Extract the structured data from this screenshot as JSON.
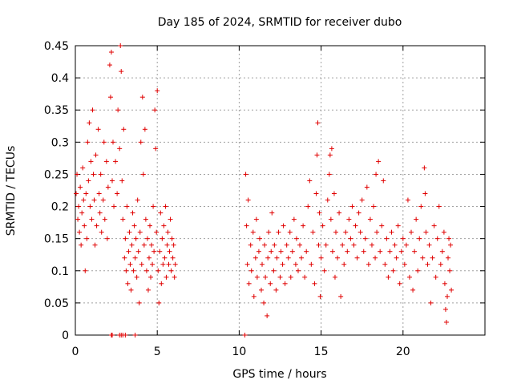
{
  "chart_data": {
    "type": "scatter",
    "title": "Day 185 of 2024, SRMTID for receiver dubo",
    "xlabel": "GPS time / hours",
    "ylabel": "SRMTID / TECUs",
    "xlim": [
      0,
      25
    ],
    "ylim": [
      0,
      0.45
    ],
    "grid": true,
    "marker": "+",
    "color": "#e00000",
    "xticks": [
      {
        "value": 0,
        "label": "0"
      },
      {
        "value": 5,
        "label": "5"
      },
      {
        "value": 10,
        "label": "10"
      },
      {
        "value": 15,
        "label": "15"
      },
      {
        "value": 20,
        "label": "20"
      }
    ],
    "yticks": [
      {
        "value": 0,
        "label": "0"
      },
      {
        "value": 0.05,
        "label": "0.05"
      },
      {
        "value": 0.1,
        "label": "0.1"
      },
      {
        "value": 0.15,
        "label": "0.15"
      },
      {
        "value": 0.2,
        "label": "0.2"
      },
      {
        "value": 0.25,
        "label": "0.25"
      },
      {
        "value": 0.3,
        "label": "0.3"
      },
      {
        "value": 0.35,
        "label": "0.35"
      },
      {
        "value": 0.4,
        "label": "0.4"
      },
      {
        "value": 0.45,
        "label": "0.45"
      }
    ],
    "series": [
      {
        "name": "SRMTID",
        "points": [
          [
            0.05,
            0.22
          ],
          [
            0.1,
            0.25
          ],
          [
            0.15,
            0.18
          ],
          [
            0.2,
            0.2
          ],
          [
            0.25,
            0.16
          ],
          [
            0.3,
            0.23
          ],
          [
            0.35,
            0.14
          ],
          [
            0.4,
            0.19
          ],
          [
            0.45,
            0.26
          ],
          [
            0.5,
            0.21
          ],
          [
            0.55,
            0.17
          ],
          [
            0.6,
            0.1
          ],
          [
            0.65,
            0.22
          ],
          [
            0.7,
            0.15
          ],
          [
            0.75,
            0.3
          ],
          [
            0.8,
            0.24
          ],
          [
            0.85,
            0.33
          ],
          [
            0.9,
            0.2
          ],
          [
            0.95,
            0.27
          ],
          [
            1.0,
            0.18
          ],
          [
            1.05,
            0.35
          ],
          [
            1.1,
            0.25
          ],
          [
            1.15,
            0.21
          ],
          [
            1.2,
            0.14
          ],
          [
            1.25,
            0.28
          ],
          [
            1.3,
            0.17
          ],
          [
            1.4,
            0.32
          ],
          [
            1.45,
            0.22
          ],
          [
            1.5,
            0.19
          ],
          [
            1.55,
            0.25
          ],
          [
            1.6,
            0.16
          ],
          [
            1.7,
            0.21
          ],
          [
            1.75,
            0.3
          ],
          [
            1.8,
            0.18
          ],
          [
            1.9,
            0.27
          ],
          [
            1.95,
            0.15
          ],
          [
            2.0,
            0.23
          ],
          [
            2.1,
            0.42
          ],
          [
            2.15,
            0.37
          ],
          [
            2.2,
            0.44
          ],
          [
            2.25,
            0.24
          ],
          [
            2.3,
            0.3
          ],
          [
            2.35,
            0.2
          ],
          [
            2.45,
            0.27
          ],
          [
            2.55,
            0.22
          ],
          [
            2.6,
            0.35
          ],
          [
            2.7,
            0.29
          ],
          [
            2.75,
            0.45
          ],
          [
            2.8,
            0.41
          ],
          [
            2.85,
            0.24
          ],
          [
            2.9,
            0.18
          ],
          [
            2.95,
            0.32
          ],
          [
            3.0,
            0.12
          ],
          [
            3.05,
            0.15
          ],
          [
            3.1,
            0.1
          ],
          [
            3.15,
            0.2
          ],
          [
            3.2,
            0.08
          ],
          [
            3.25,
            0.13
          ],
          [
            3.3,
            0.16
          ],
          [
            3.35,
            0.11
          ],
          [
            3.4,
            0.07
          ],
          [
            3.45,
            0.14
          ],
          [
            3.5,
            0.19
          ],
          [
            3.55,
            0.1
          ],
          [
            3.6,
            0.17
          ],
          [
            3.65,
            0.12
          ],
          [
            3.7,
            0.15
          ],
          [
            3.75,
            0.09
          ],
          [
            3.8,
            0.21
          ],
          [
            3.85,
            0.13
          ],
          [
            3.9,
            0.05
          ],
          [
            3.95,
            0.16
          ],
          [
            4.0,
            0.3
          ],
          [
            4.05,
            0.11
          ],
          [
            4.1,
            0.37
          ],
          [
            4.15,
            0.25
          ],
          [
            4.2,
            0.14
          ],
          [
            4.25,
            0.32
          ],
          [
            4.3,
            0.18
          ],
          [
            4.35,
            0.1
          ],
          [
            4.4,
            0.15
          ],
          [
            4.45,
            0.07
          ],
          [
            4.5,
            0.12
          ],
          [
            4.55,
            0.17
          ],
          [
            4.6,
            0.09
          ],
          [
            4.65,
            0.14
          ],
          [
            4.7,
            0.11
          ],
          [
            4.75,
            0.2
          ],
          [
            4.8,
            0.13
          ],
          [
            4.85,
            0.35
          ],
          [
            4.9,
            0.29
          ],
          [
            4.95,
            0.16
          ],
          [
            5.0,
            0.38
          ],
          [
            5.05,
            0.1
          ],
          [
            5.1,
            0.05
          ],
          [
            5.15,
            0.13
          ],
          [
            5.2,
            0.19
          ],
          [
            5.25,
            0.08
          ],
          [
            5.3,
            0.15
          ],
          [
            5.35,
            0.11
          ],
          [
            5.4,
            0.17
          ],
          [
            5.45,
            0.12
          ],
          [
            5.5,
            0.2
          ],
          [
            5.55,
            0.09
          ],
          [
            5.6,
            0.14
          ],
          [
            5.65,
            0.16
          ],
          [
            5.7,
            0.11
          ],
          [
            5.75,
            0.13
          ],
          [
            5.8,
            0.18
          ],
          [
            5.85,
            0.1
          ],
          [
            5.9,
            0.15
          ],
          [
            5.95,
            0.12
          ],
          [
            6.0,
            0.14
          ],
          [
            6.05,
            0.09
          ],
          [
            6.1,
            0.11
          ],
          [
            10.4,
            0.25
          ],
          [
            10.45,
            0.17
          ],
          [
            10.5,
            0.11
          ],
          [
            10.55,
            0.21
          ],
          [
            10.6,
            0.08
          ],
          [
            10.7,
            0.14
          ],
          [
            10.75,
            0.1
          ],
          [
            10.85,
            0.16
          ],
          [
            10.9,
            0.06
          ],
          [
            11.0,
            0.12
          ],
          [
            11.05,
            0.18
          ],
          [
            11.1,
            0.09
          ],
          [
            11.2,
            0.13
          ],
          [
            11.25,
            0.15
          ],
          [
            11.35,
            0.07
          ],
          [
            11.4,
            0.11
          ],
          [
            11.5,
            0.05
          ],
          [
            11.55,
            0.14
          ],
          [
            11.6,
            0.09
          ],
          [
            11.7,
            0.03
          ],
          [
            11.75,
            0.12
          ],
          [
            11.8,
            0.16
          ],
          [
            11.9,
            0.08
          ],
          [
            11.95,
            0.13
          ],
          [
            12.0,
            0.19
          ],
          [
            12.1,
            0.1
          ],
          [
            12.15,
            0.14
          ],
          [
            12.25,
            0.07
          ],
          [
            12.3,
            0.12
          ],
          [
            12.4,
            0.16
          ],
          [
            12.5,
            0.09
          ],
          [
            12.55,
            0.13
          ],
          [
            12.65,
            0.11
          ],
          [
            12.7,
            0.17
          ],
          [
            12.8,
            0.08
          ],
          [
            12.9,
            0.14
          ],
          [
            13.0,
            0.12
          ],
          [
            13.1,
            0.16
          ],
          [
            13.15,
            0.09
          ],
          [
            13.25,
            0.13
          ],
          [
            13.35,
            0.18
          ],
          [
            13.45,
            0.11
          ],
          [
            13.5,
            0.15
          ],
          [
            13.6,
            0.1
          ],
          [
            13.7,
            0.14
          ],
          [
            13.8,
            0.12
          ],
          [
            13.9,
            0.17
          ],
          [
            14.0,
            0.09
          ],
          [
            14.1,
            0.13
          ],
          [
            14.2,
            0.2
          ],
          [
            14.3,
            0.24
          ],
          [
            14.4,
            0.11
          ],
          [
            14.5,
            0.16
          ],
          [
            14.6,
            0.08
          ],
          [
            14.7,
            0.22
          ],
          [
            14.75,
            0.28
          ],
          [
            14.8,
            0.33
          ],
          [
            14.85,
            0.14
          ],
          [
            14.9,
            0.19
          ],
          [
            14.95,
            0.06
          ],
          [
            15.0,
            0.12
          ],
          [
            15.1,
            0.17
          ],
          [
            15.2,
            0.1
          ],
          [
            15.3,
            0.14
          ],
          [
            15.4,
            0.21
          ],
          [
            15.5,
            0.25
          ],
          [
            15.55,
            0.28
          ],
          [
            15.6,
            0.18
          ],
          [
            15.65,
            0.29
          ],
          [
            15.7,
            0.13
          ],
          [
            15.8,
            0.22
          ],
          [
            15.85,
            0.09
          ],
          [
            15.9,
            0.16
          ],
          [
            16.0,
            0.12
          ],
          [
            16.1,
            0.19
          ],
          [
            16.2,
            0.06
          ],
          [
            16.3,
            0.14
          ],
          [
            16.4,
            0.11
          ],
          [
            16.5,
            0.16
          ],
          [
            16.6,
            0.13
          ],
          [
            16.7,
            0.18
          ],
          [
            16.8,
            0.15
          ],
          [
            16.9,
            0.2
          ],
          [
            17.0,
            0.14
          ],
          [
            17.1,
            0.17
          ],
          [
            17.2,
            0.12
          ],
          [
            17.3,
            0.19
          ],
          [
            17.4,
            0.16
          ],
          [
            17.5,
            0.21
          ],
          [
            17.6,
            0.13
          ],
          [
            17.7,
            0.15
          ],
          [
            17.8,
            0.23
          ],
          [
            17.9,
            0.11
          ],
          [
            18.0,
            0.18
          ],
          [
            18.1,
            0.14
          ],
          [
            18.2,
            0.2
          ],
          [
            18.3,
            0.12
          ],
          [
            18.35,
            0.25
          ],
          [
            18.4,
            0.16
          ],
          [
            18.5,
            0.27
          ],
          [
            18.6,
            0.13
          ],
          [
            18.7,
            0.17
          ],
          [
            18.8,
            0.24
          ],
          [
            18.9,
            0.11
          ],
          [
            19.0,
            0.15
          ],
          [
            19.1,
            0.09
          ],
          [
            19.2,
            0.13
          ],
          [
            19.3,
            0.16
          ],
          [
            19.4,
            0.1
          ],
          [
            19.5,
            0.14
          ],
          [
            19.6,
            0.12
          ],
          [
            19.7,
            0.17
          ],
          [
            19.8,
            0.08
          ],
          [
            19.9,
            0.13
          ],
          [
            20.0,
            0.15
          ],
          [
            20.1,
            0.11
          ],
          [
            20.2,
            0.14
          ],
          [
            20.3,
            0.21
          ],
          [
            20.4,
            0.09
          ],
          [
            20.5,
            0.16
          ],
          [
            20.6,
            0.07
          ],
          [
            20.7,
            0.13
          ],
          [
            20.8,
            0.18
          ],
          [
            20.9,
            0.1
          ],
          [
            21.0,
            0.15
          ],
          [
            21.1,
            0.2
          ],
          [
            21.2,
            0.12
          ],
          [
            21.3,
            0.26
          ],
          [
            21.35,
            0.22
          ],
          [
            21.4,
            0.16
          ],
          [
            21.5,
            0.11
          ],
          [
            21.6,
            0.14
          ],
          [
            21.7,
            0.05
          ],
          [
            21.8,
            0.12
          ],
          [
            21.9,
            0.17
          ],
          [
            22.0,
            0.09
          ],
          [
            22.1,
            0.15
          ],
          [
            22.2,
            0.2
          ],
          [
            22.3,
            0.11
          ],
          [
            22.4,
            0.13
          ],
          [
            22.5,
            0.16
          ],
          [
            22.55,
            0.08
          ],
          [
            22.6,
            0.04
          ],
          [
            22.65,
            0.02
          ],
          [
            22.7,
            0.06
          ],
          [
            22.75,
            0.12
          ],
          [
            22.8,
            0.15
          ],
          [
            22.85,
            0.1
          ],
          [
            22.9,
            0.14
          ],
          [
            22.95,
            0.07
          ]
        ]
      },
      {
        "name": "zero-values",
        "points": [
          [
            2.2,
            0
          ],
          [
            2.25,
            0
          ],
          [
            2.7,
            0
          ],
          [
            2.8,
            0
          ],
          [
            2.9,
            0
          ],
          [
            3.05,
            0
          ],
          [
            3.65,
            0
          ],
          [
            10.35,
            0
          ]
        ]
      }
    ]
  }
}
